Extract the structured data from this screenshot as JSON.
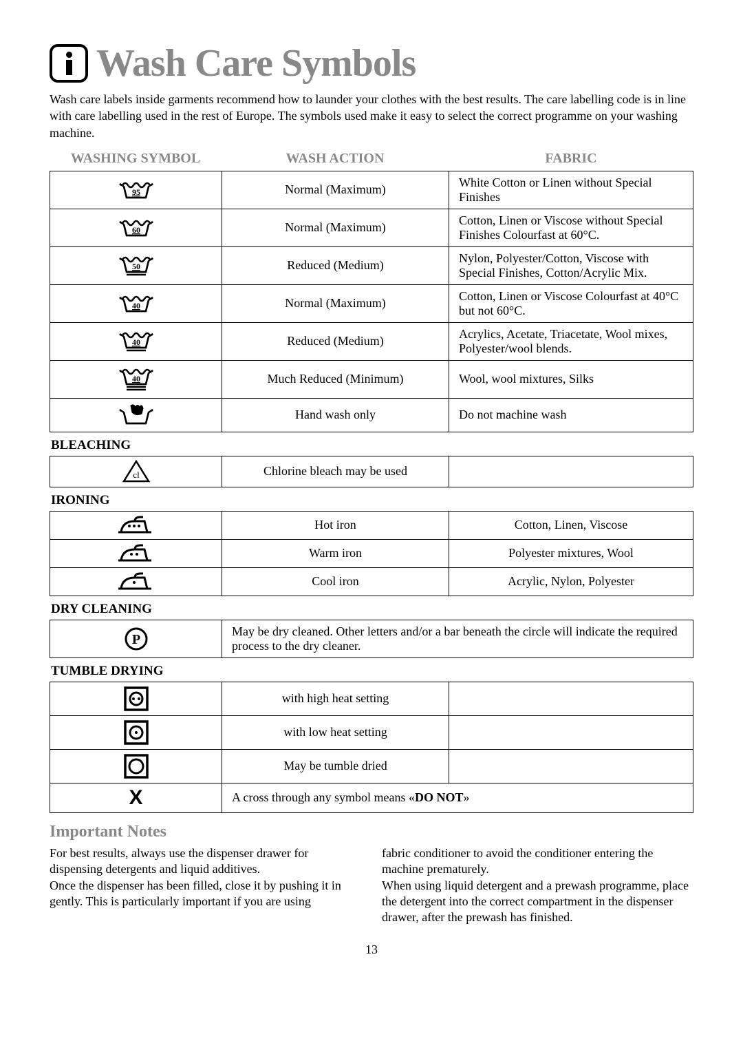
{
  "title": "Wash Care Symbols",
  "intro": "Wash care labels inside garments recommend how to launder your clothes with the best results. The care labelling code is in line with care labelling used in the rest of Europe. The symbols used make it easy to select the correct programme on your washing machine.",
  "headers": {
    "c1": "WASHING SYMBOL",
    "c2": "WASH ACTION",
    "c3": "FABRIC"
  },
  "wash": [
    {
      "temp": "95",
      "bars": 0,
      "action": "Normal (Maximum)",
      "fabric": "White Cotton or Linen without Special Finishes"
    },
    {
      "temp": "60",
      "bars": 0,
      "action": "Normal (Maximum)",
      "fabric": "Cotton, Linen or Viscose without Special Finishes Colourfast at 60°C."
    },
    {
      "temp": "50",
      "bars": 1,
      "action": "Reduced (Medium)",
      "fabric": "Nylon, Polyester/Cotton, Viscose with Special Finishes, Cotton/Acrylic Mix."
    },
    {
      "temp": "40",
      "bars": 0,
      "action": "Normal (Maximum)",
      "fabric": "Cotton, Linen or Viscose Colourfast at 40°C but not 60°C."
    },
    {
      "temp": "40",
      "bars": 1,
      "action": "Reduced (Medium)",
      "fabric": "Acrylics, Acetate, Triacetate, Wool mixes, Polyester/wool blends."
    },
    {
      "temp": "40",
      "bars": 2,
      "action": "Much Reduced (Minimum)",
      "fabric": "Wool, wool mixtures, Silks"
    }
  ],
  "handwash": {
    "action": "Hand wash only",
    "fabric": "Do not machine wash"
  },
  "sections": {
    "bleaching": "BLEACHING",
    "ironing": "IRONING",
    "drycleaning": "DRY CLEANING",
    "tumble": "TUMBLE DRYING"
  },
  "bleach": {
    "action": "Chlorine bleach may be used"
  },
  "iron": [
    {
      "dots": 3,
      "action": "Hot iron",
      "fabric": "Cotton, Linen, Viscose"
    },
    {
      "dots": 2,
      "action": "Warm iron",
      "fabric": "Polyester mixtures, Wool"
    },
    {
      "dots": 1,
      "action": "Cool iron",
      "fabric": "Acrylic, Nylon, Polyester"
    }
  ],
  "dryclean": "May be dry cleaned. Other letters and/or a bar beneath the circle will indicate the required process to the dry cleaner.",
  "tumble": [
    {
      "type": "high",
      "action": "with high heat setting"
    },
    {
      "type": "low",
      "action": "with low heat setting"
    },
    {
      "type": "plain",
      "action": "May be tumble dried"
    }
  ],
  "cross_prefix": "A cross through any symbol means «",
  "cross_bold": "DO NOT",
  "cross_suffix": "»",
  "notes_title": "Important Notes",
  "notes_left": "For best results, always use the dispenser drawer for dispensing detergents and liquid additives.\nOnce the dispenser has been filled, close it by pushing it in gently. This is particularly important if you are using",
  "notes_right": "fabric conditioner to avoid the conditioner entering the machine prematurely.\nWhen using liquid detergent and a prewash programme, place the detergent into the correct compartment in the dispenser drawer, after the prewash has finished.",
  "page": "13"
}
